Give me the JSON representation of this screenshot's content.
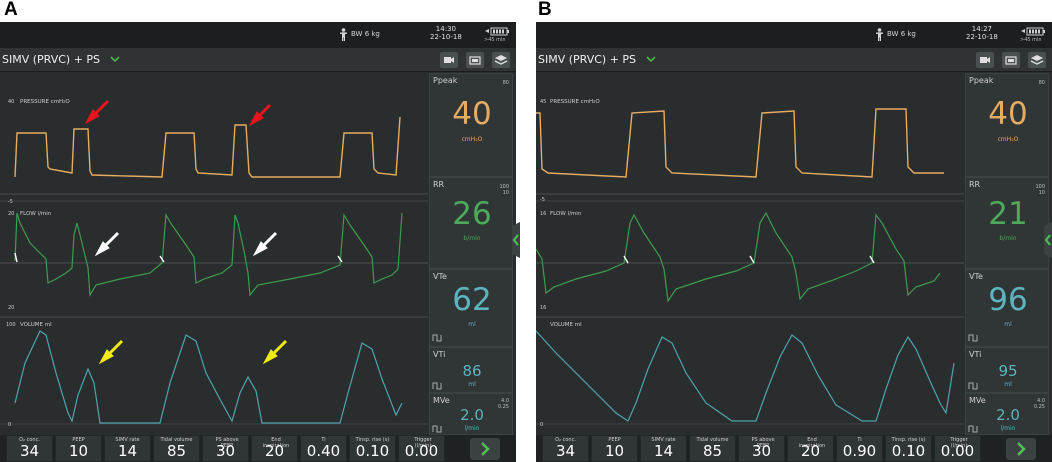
{
  "panels": [
    {
      "letter": "A",
      "weight": "BW 6 kg",
      "time": "14:30",
      "date": "22-10-18",
      "battery_label": ">45 min",
      "mode": "SIMV (PRVC) + PS",
      "waveforms": {
        "pressure": {
          "label": "PRESSURE cmH₂O",
          "scale_top": "40",
          "scale_bottom": "-5"
        },
        "flow": {
          "label": "FLOW l/min",
          "scale_top": "20",
          "scale_bottom": "20"
        },
        "volume": {
          "label": "VOLUME ml",
          "scale_top": "100",
          "scale_bottom": "0"
        }
      },
      "readings": {
        "ppeak": {
          "label": "Ppeak",
          "value": "40",
          "unit": "cmH₂O",
          "scale": "80"
        },
        "rr": {
          "label": "RR",
          "value": "26",
          "unit": "b/min",
          "scale_top": "100",
          "scale_bottom": "10"
        },
        "vte": {
          "label": "VTe",
          "value": "62",
          "unit": "ml"
        },
        "vti": {
          "label": "VTi",
          "value": "86",
          "unit": "ml"
        },
        "mve": {
          "label": "MVe",
          "value": "2.0",
          "unit": "l/min",
          "scale_top": "4.0",
          "scale_bottom": "0.25"
        }
      },
      "params": [
        {
          "label": "O₂ conc.",
          "value": "34"
        },
        {
          "label": "PEEP",
          "value": "10"
        },
        {
          "label": "SIMV rate",
          "value": "14"
        },
        {
          "label": "Tidal volume",
          "value": "85"
        },
        {
          "label": "PS above PEEP",
          "value": "30"
        },
        {
          "label": "End inspiration",
          "value": "20"
        },
        {
          "label": "Ti",
          "value": "0.40"
        },
        {
          "label": "Tinsp. rise (s)",
          "value": "0.10"
        },
        {
          "label": "Trigger (l/min)",
          "value": "0.00"
        }
      ]
    },
    {
      "letter": "B",
      "weight": "BW 6 kg",
      "time": "14:27",
      "date": "22-10-18",
      "battery_label": ">45 min",
      "mode": "SIMV (PRVC) + PS",
      "waveforms": {
        "pressure": {
          "label": "PRESSURE cmH₂O",
          "scale_top": "45",
          "scale_bottom": "-5"
        },
        "flow": {
          "label": "FLOW l/min",
          "scale_top": "16",
          "scale_bottom": "16"
        },
        "volume": {
          "label": "VOLUME ml",
          "scale_top": "",
          "scale_bottom": "0"
        }
      },
      "readings": {
        "ppeak": {
          "label": "Ppeak",
          "value": "40",
          "unit": "cmH₂O",
          "scale": "80"
        },
        "rr": {
          "label": "RR",
          "value": "21",
          "unit": "b/min",
          "scale_top": "100",
          "scale_bottom": "10"
        },
        "vte": {
          "label": "VTe",
          "value": "96",
          "unit": "ml"
        },
        "vti": {
          "label": "VTi",
          "value": "95",
          "unit": "ml"
        },
        "mve": {
          "label": "MVe",
          "value": "2.0",
          "unit": "l/min",
          "scale_top": "4.0",
          "scale_bottom": "0.25"
        }
      },
      "params": [
        {
          "label": "O₂ conc.",
          "value": "34"
        },
        {
          "label": "PEEP",
          "value": "10"
        },
        {
          "label": "SIMV rate",
          "value": "14"
        },
        {
          "label": "Tidal volume",
          "value": "85"
        },
        {
          "label": "PS above PEEP",
          "value": "30"
        },
        {
          "label": "End inspiration",
          "value": "20"
        },
        {
          "label": "Ti",
          "value": "0.90"
        },
        {
          "label": "Tinsp. rise (s)",
          "value": "0.10"
        },
        {
          "label": "Trigger (l/min)",
          "value": "0.00"
        }
      ]
    }
  ],
  "colors": {
    "pressure": "#e6ac62",
    "flow": "#3f9b4f",
    "volume": "#4fa3ad",
    "arrow_pressure": "#e8161c",
    "arrow_flow": "#ffffff",
    "arrow_volume": "#f2ea17"
  }
}
